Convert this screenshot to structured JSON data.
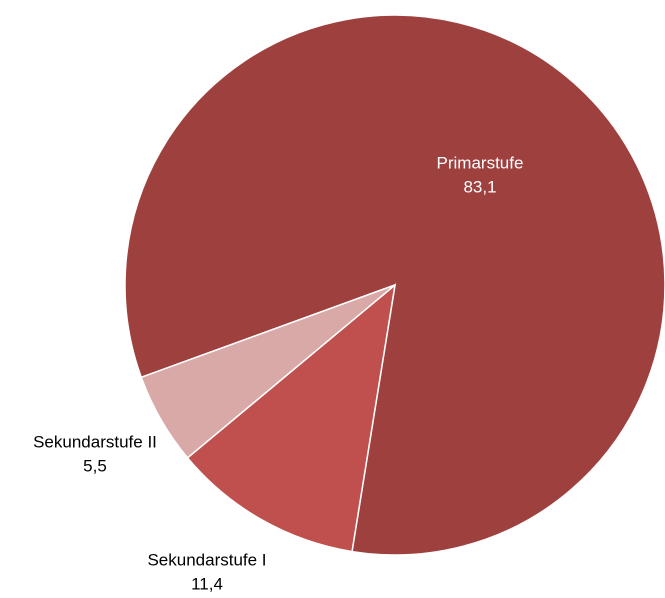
{
  "chart_data": {
    "type": "pie",
    "categories": [
      "Primarstufe",
      "Sekundarstufe I",
      "Sekundarstufe II"
    ],
    "values": [
      83.1,
      11.4,
      5.5
    ],
    "value_labels": [
      "83,1",
      "11,4",
      "5,5"
    ],
    "colors": [
      "#9e403e",
      "#c0504d",
      "#d9a9a8"
    ]
  }
}
